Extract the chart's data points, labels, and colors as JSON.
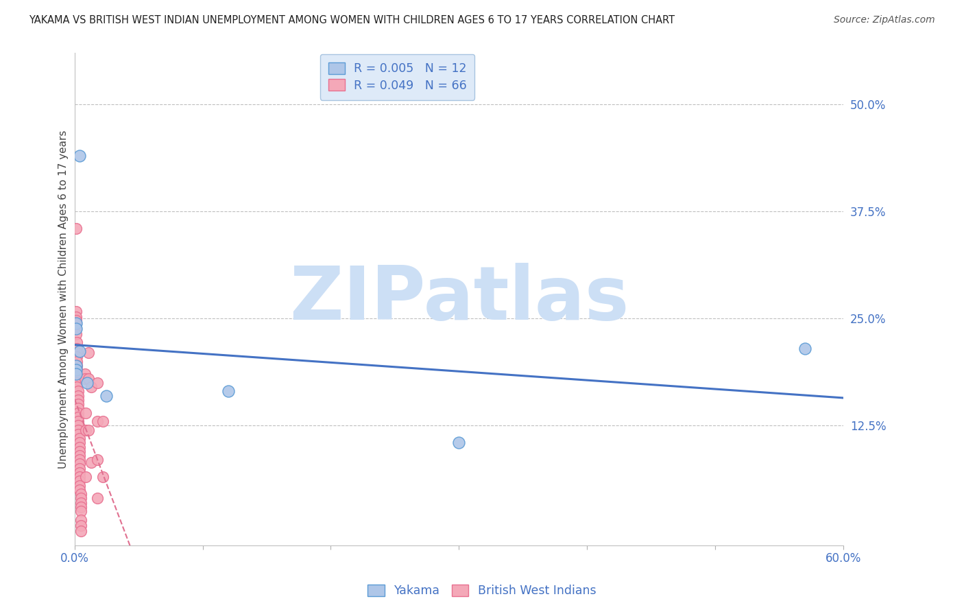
{
  "title": "YAKAMA VS BRITISH WEST INDIAN UNEMPLOYMENT AMONG WOMEN WITH CHILDREN AGES 6 TO 17 YEARS CORRELATION CHART",
  "source": "Source: ZipAtlas.com",
  "ylabel": "Unemployment Among Women with Children Ages 6 to 17 years",
  "xlim": [
    0,
    0.6
  ],
  "ylim": [
    -0.015,
    0.56
  ],
  "xtick_positions": [
    0.0,
    0.1,
    0.2,
    0.3,
    0.4,
    0.5,
    0.6
  ],
  "xtick_labels": [
    "0.0%",
    "",
    "",
    "",
    "",
    "",
    "60.0%"
  ],
  "ytick_positions": [
    0.125,
    0.25,
    0.375,
    0.5
  ],
  "ytick_labels": [
    "12.5%",
    "25.0%",
    "37.5%",
    "50.0%"
  ],
  "yakama_color": "#aec6e8",
  "bwi_color": "#f4a8b8",
  "yakama_edge_color": "#5b9bd5",
  "bwi_edge_color": "#e87090",
  "yakama_R": 0.005,
  "yakama_N": 12,
  "bwi_R": 0.049,
  "bwi_N": 66,
  "yakama_line_color": "#4472c4",
  "bwi_line_color": "#e07090",
  "yakama_scatter": [
    [
      0.004,
      0.44
    ],
    [
      0.001,
      0.245
    ],
    [
      0.001,
      0.238
    ],
    [
      0.004,
      0.212
    ],
    [
      0.001,
      0.195
    ],
    [
      0.001,
      0.19
    ],
    [
      0.001,
      0.185
    ],
    [
      0.01,
      0.175
    ],
    [
      0.57,
      0.215
    ],
    [
      0.12,
      0.165
    ],
    [
      0.025,
      0.16
    ],
    [
      0.3,
      0.105
    ]
  ],
  "bwi_scatter": [
    [
      0.001,
      0.355
    ],
    [
      0.001,
      0.258
    ],
    [
      0.001,
      0.252
    ],
    [
      0.001,
      0.248
    ],
    [
      0.001,
      0.244
    ],
    [
      0.001,
      0.238
    ],
    [
      0.001,
      0.232
    ],
    [
      0.002,
      0.222
    ],
    [
      0.002,
      0.215
    ],
    [
      0.002,
      0.21
    ],
    [
      0.002,
      0.205
    ],
    [
      0.002,
      0.2
    ],
    [
      0.002,
      0.195
    ],
    [
      0.002,
      0.19
    ],
    [
      0.002,
      0.185
    ],
    [
      0.002,
      0.18
    ],
    [
      0.002,
      0.175
    ],
    [
      0.002,
      0.17
    ],
    [
      0.003,
      0.165
    ],
    [
      0.003,
      0.16
    ],
    [
      0.003,
      0.155
    ],
    [
      0.003,
      0.15
    ],
    [
      0.003,
      0.145
    ],
    [
      0.003,
      0.14
    ],
    [
      0.003,
      0.135
    ],
    [
      0.003,
      0.13
    ],
    [
      0.003,
      0.125
    ],
    [
      0.003,
      0.12
    ],
    [
      0.003,
      0.115
    ],
    [
      0.004,
      0.11
    ],
    [
      0.004,
      0.105
    ],
    [
      0.004,
      0.1
    ],
    [
      0.004,
      0.095
    ],
    [
      0.004,
      0.09
    ],
    [
      0.004,
      0.085
    ],
    [
      0.004,
      0.08
    ],
    [
      0.004,
      0.075
    ],
    [
      0.004,
      0.07
    ],
    [
      0.004,
      0.065
    ],
    [
      0.004,
      0.06
    ],
    [
      0.004,
      0.055
    ],
    [
      0.004,
      0.05
    ],
    [
      0.005,
      0.045
    ],
    [
      0.005,
      0.04
    ],
    [
      0.005,
      0.035
    ],
    [
      0.005,
      0.03
    ],
    [
      0.005,
      0.025
    ],
    [
      0.005,
      0.015
    ],
    [
      0.005,
      0.008
    ],
    [
      0.005,
      0.002
    ],
    [
      0.008,
      0.185
    ],
    [
      0.008,
      0.18
    ],
    [
      0.009,
      0.14
    ],
    [
      0.009,
      0.12
    ],
    [
      0.009,
      0.065
    ],
    [
      0.011,
      0.21
    ],
    [
      0.011,
      0.18
    ],
    [
      0.011,
      0.12
    ],
    [
      0.013,
      0.17
    ],
    [
      0.013,
      0.082
    ],
    [
      0.018,
      0.175
    ],
    [
      0.018,
      0.13
    ],
    [
      0.018,
      0.085
    ],
    [
      0.018,
      0.04
    ],
    [
      0.022,
      0.13
    ],
    [
      0.022,
      0.065
    ]
  ],
  "watermark_text": "ZIPatlas",
  "watermark_color": "#ccdff5",
  "background_color": "#ffffff",
  "grid_color": "#b8b8b8",
  "title_color": "#222222",
  "tick_label_color": "#4472c4",
  "legend_box_color": "#deeaf8",
  "legend_edge_color": "#a8c4e0"
}
